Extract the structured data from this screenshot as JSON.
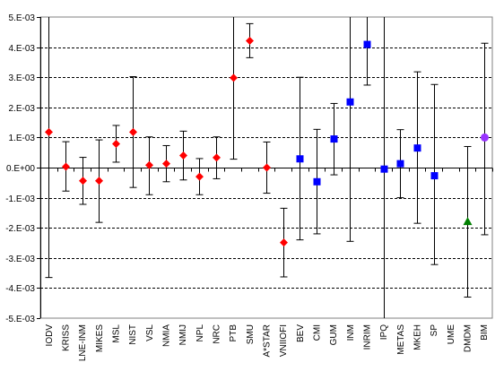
{
  "chart_data": {
    "type": "scatter",
    "title": "",
    "xlabel": "",
    "ylabel": "",
    "ylim": [
      -0.005,
      0.005
    ],
    "grid": "horizontal dashed",
    "y_ticks": [
      "-5.E-03",
      "-4.E-03",
      "-3.E-03",
      "-2.E-03",
      "-1.E-03",
      "0.E+00",
      "1.E-03",
      "2.E-03",
      "3.E-03",
      "4.E-03",
      "5.E-03"
    ],
    "y_tick_values": [
      -0.005,
      -0.004,
      -0.003,
      -0.002,
      -0.001,
      0,
      0.001,
      0.002,
      0.003,
      0.004,
      0.005
    ],
    "categories": [
      "IODV",
      "KRISS",
      "LNE-INM",
      "MIKES",
      "MSL",
      "NIST",
      "VSL",
      "NMIA",
      "NMIJ",
      "NPL",
      "NRC",
      "PTB",
      "SMU",
      "A*STAR",
      "VNIIOFI",
      "BEV",
      "CMI",
      "GUM",
      "INM",
      "INRIM",
      "IPQ",
      "METAS",
      "MKEH",
      "SP",
      "UME",
      "DMDM",
      "BIM"
    ],
    "points": [
      {
        "category": "IODV",
        "y": 0.00118,
        "low": -0.00365,
        "high": 0.005,
        "marker": "diamond",
        "color": "#ff0000"
      },
      {
        "category": "KRISS",
        "y": 3e-05,
        "low": -0.00078,
        "high": 0.00086,
        "marker": "diamond",
        "color": "#ff0000"
      },
      {
        "category": "LNE-INM",
        "y": -0.00044,
        "low": -0.00122,
        "high": 0.00034,
        "marker": "diamond",
        "color": "#ff0000"
      },
      {
        "category": "MIKES",
        "y": -0.00044,
        "low": -0.00182,
        "high": 0.00092,
        "marker": "diamond",
        "color": "#ff0000"
      },
      {
        "category": "MSL",
        "y": 0.00079,
        "low": 0.00018,
        "high": 0.0014,
        "marker": "diamond",
        "color": "#ff0000"
      },
      {
        "category": "NIST",
        "y": 0.00118,
        "low": -0.00066,
        "high": 0.00302,
        "marker": "diamond",
        "color": "#ff0000"
      },
      {
        "category": "VSL",
        "y": 8e-05,
        "low": -0.0009,
        "high": 0.00102,
        "marker": "diamond",
        "color": "#ff0000"
      },
      {
        "category": "NMIA",
        "y": 0.00013,
        "low": -0.00047,
        "high": 0.00073,
        "marker": "diamond",
        "color": "#ff0000"
      },
      {
        "category": "NMIJ",
        "y": 0.0004,
        "low": -0.00041,
        "high": 0.00121,
        "marker": "diamond",
        "color": "#ff0000"
      },
      {
        "category": "NPL",
        "y": -0.0003,
        "low": -0.0009,
        "high": 0.0003,
        "marker": "diamond",
        "color": "#ff0000"
      },
      {
        "category": "NRC",
        "y": 0.00033,
        "low": -0.00037,
        "high": 0.00102,
        "marker": "diamond",
        "color": "#ff0000"
      },
      {
        "category": "PTB",
        "y": 0.00298,
        "low": 0.00028,
        "high": 0.005,
        "marker": "diamond",
        "color": "#ff0000"
      },
      {
        "category": "SMU",
        "y": 0.00421,
        "low": 0.00365,
        "high": 0.00478,
        "marker": "diamond",
        "color": "#ff0000"
      },
      {
        "category": "A*STAR",
        "y": 0.0,
        "low": -0.00085,
        "high": 0.00085,
        "marker": "diamond",
        "color": "#ff0000"
      },
      {
        "category": "VNIIOFI",
        "y": -0.00249,
        "low": -0.00363,
        "high": -0.00135,
        "marker": "diamond",
        "color": "#ff0000"
      },
      {
        "category": "BEV",
        "y": 0.00029,
        "low": -0.0024,
        "high": 0.003,
        "marker": "square",
        "color": "#0000ff"
      },
      {
        "category": "CMI",
        "y": -0.00047,
        "low": -0.0022,
        "high": 0.00127,
        "marker": "square",
        "color": "#0000ff"
      },
      {
        "category": "GUM",
        "y": 0.00095,
        "low": -0.00024,
        "high": 0.00213,
        "marker": "square",
        "color": "#0000ff"
      },
      {
        "category": "INM",
        "y": 0.00218,
        "low": -0.00245,
        "high": 0.005,
        "marker": "square",
        "color": "#0000ff"
      },
      {
        "category": "INRIM",
        "y": 0.00409,
        "low": 0.00274,
        "high": 0.005,
        "marker": "square",
        "color": "#0000ff"
      },
      {
        "category": "IPQ",
        "y": -5e-05,
        "low": -0.005,
        "high": 0.005,
        "marker": "square",
        "color": "#0000ff"
      },
      {
        "category": "METAS",
        "y": 0.00013,
        "low": -0.001,
        "high": 0.00126,
        "marker": "square",
        "color": "#0000ff"
      },
      {
        "category": "MKEH",
        "y": 0.00065,
        "low": -0.00185,
        "high": 0.00318,
        "marker": "square",
        "color": "#0000ff"
      },
      {
        "category": "SP",
        "y": -0.00027,
        "low": -0.00322,
        "high": 0.00276,
        "marker": "square",
        "color": "#0000ff"
      },
      {
        "category": "UME",
        "y": null,
        "low": null,
        "high": null,
        "marker": "none",
        "color": "#000000"
      },
      {
        "category": "DMDM",
        "y": -0.00179,
        "low": -0.0043,
        "high": 0.0007,
        "marker": "triangle",
        "color": "#008000"
      },
      {
        "category": "BIM",
        "y": 0.001,
        "low": -0.00223,
        "high": 0.00413,
        "marker": "circle",
        "color": "#9933ff"
      }
    ],
    "legend": "none"
  }
}
